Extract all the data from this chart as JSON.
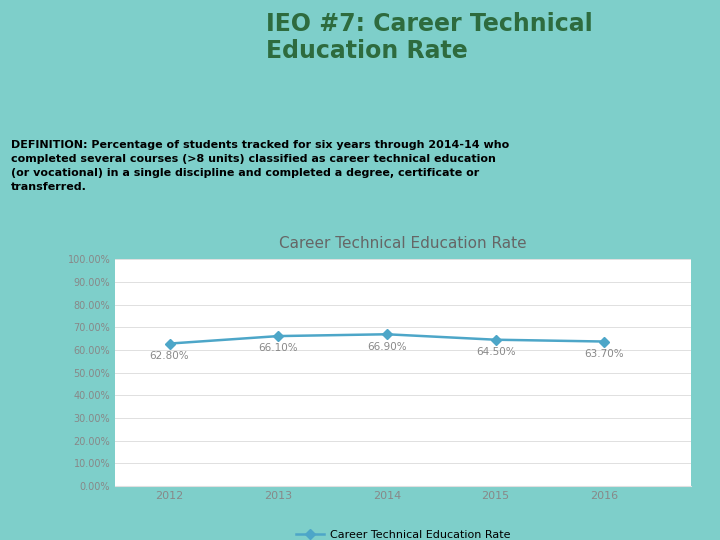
{
  "title": "Career Technical Education Rate",
  "years": [
    2012,
    2013,
    2014,
    2015,
    2016
  ],
  "values": [
    0.628,
    0.661,
    0.669,
    0.645,
    0.637
  ],
  "labels": [
    "62.80%",
    "66.10%",
    "66.90%",
    "64.50%",
    "63.70%"
  ],
  "line_color": "#4da6c8",
  "marker_color": "#4da6c8",
  "chart_bg": "#ffffff",
  "outer_bg": "#7ecfca",
  "title_text": "IEO #7: Career Technical\nEducation Rate",
  "title_color": "#2e6b3e",
  "definition_text": "DEFINITION: Percentage of students tracked for six years through 2014-14 who\ncompleted several courses (>8 units) classified as career technical education\n(or vocational) in a single discipline and completed a degree, certificate or\ntransferred.",
  "legend_label": "Career Technical Education Rate",
  "ytick_labels": [
    "0.00%",
    "10.00%",
    "20.00%",
    "30.00%",
    "40.00%",
    "50.00%",
    "60.00%",
    "70.00%",
    "80.00%",
    "90.00%",
    "100.00%"
  ],
  "ytick_values": [
    0.0,
    0.1,
    0.2,
    0.3,
    0.4,
    0.5,
    0.6,
    0.7,
    0.8,
    0.9,
    1.0
  ],
  "chart_title_color": "#666666",
  "chart_title_fontsize": 11,
  "grid_color": "#e0e0e0",
  "tick_color": "#888888",
  "label_color": "#888888"
}
